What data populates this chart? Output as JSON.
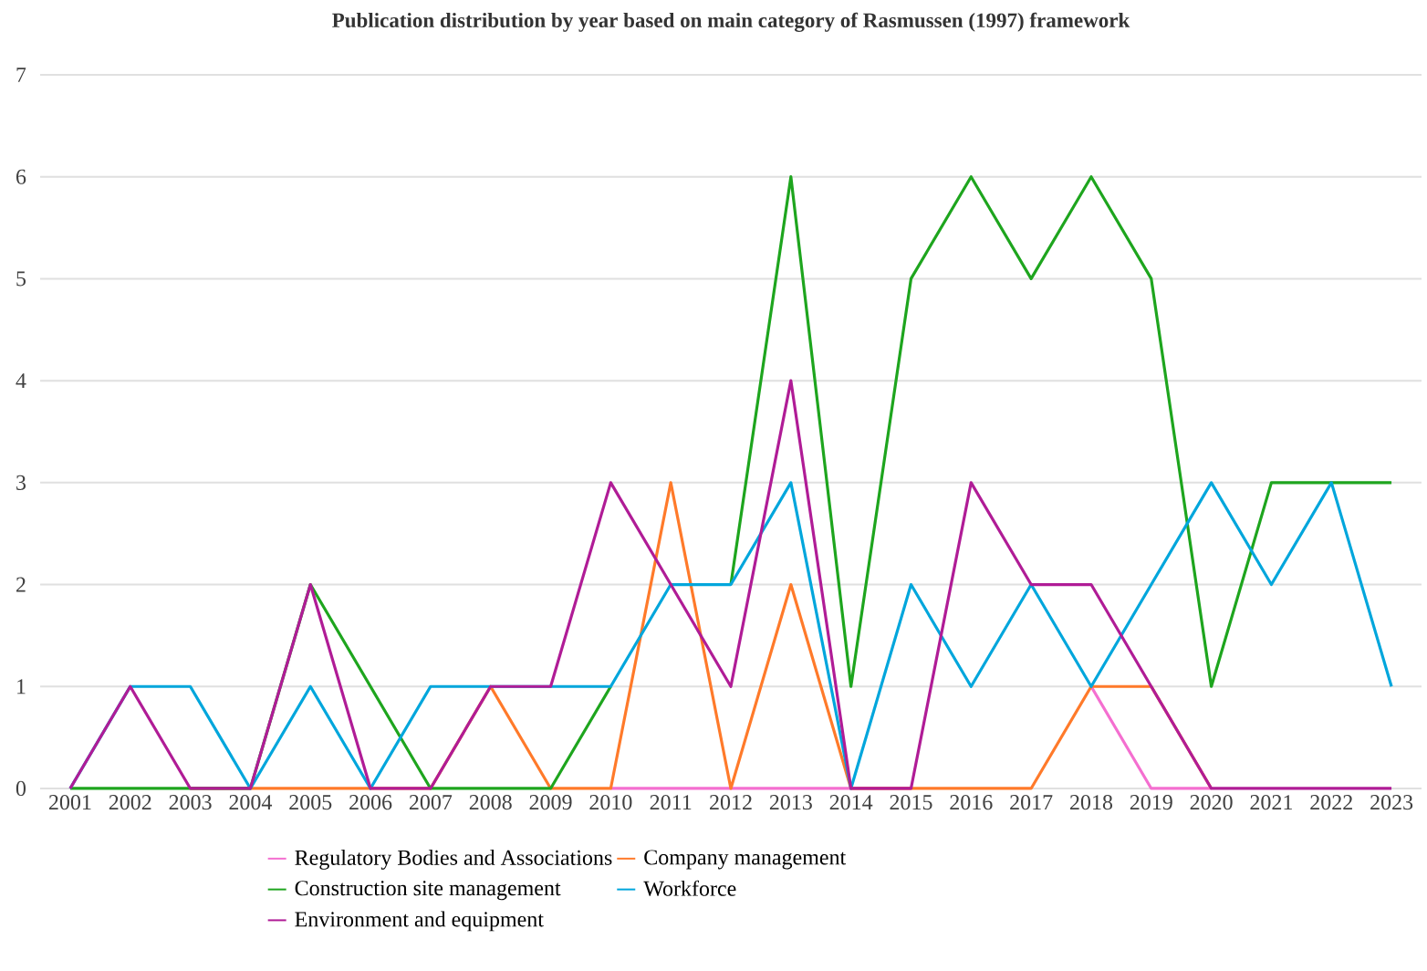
{
  "chart_data": {
    "type": "line",
    "title": "Publication distribution by year based on main category of Rasmussen (1997) framework",
    "categories": [
      "2001",
      "2002",
      "2003",
      "2004",
      "2005",
      "2006",
      "2007",
      "2008",
      "2009",
      "2010",
      "2011",
      "2012",
      "2013",
      "2014",
      "2015",
      "2016",
      "2017",
      "2018",
      "2019",
      "2020",
      "2021",
      "2022",
      "2023"
    ],
    "series": [
      {
        "name": "Regulatory Bodies and Associations",
        "color": "#f46fd0",
        "values": [
          null,
          null,
          null,
          null,
          null,
          null,
          null,
          null,
          null,
          0,
          0,
          0,
          0,
          0,
          0,
          null,
          null,
          1,
          0,
          0,
          null,
          null,
          null
        ]
      },
      {
        "name": "Company management",
        "color": "#ff7a2a",
        "values": [
          null,
          null,
          0,
          0,
          0,
          0,
          0,
          1,
          0,
          0,
          3,
          0,
          2,
          0,
          0,
          0,
          0,
          1,
          1,
          0,
          null,
          null,
          null
        ]
      },
      {
        "name": "Construction site management",
        "color": "#1ea51e",
        "values": [
          0,
          0,
          0,
          0,
          2,
          1,
          0,
          0,
          0,
          1,
          null,
          2,
          6,
          1,
          5,
          6,
          5,
          6,
          5,
          1,
          3,
          3,
          3
        ]
      },
      {
        "name": "Workforce",
        "color": "#00a6dc",
        "values": [
          0,
          1,
          1,
          0,
          1,
          0,
          1,
          1,
          1,
          1,
          2,
          2,
          3,
          0,
          2,
          1,
          2,
          1,
          2,
          3,
          2,
          3,
          1
        ]
      },
      {
        "name": "Environment and equipment",
        "color": "#b01c96",
        "values": [
          0,
          1,
          0,
          0,
          2,
          0,
          0,
          1,
          1,
          3,
          2,
          1,
          4,
          0,
          0,
          3,
          2,
          2,
          1,
          0,
          0,
          0,
          0
        ]
      }
    ],
    "ylim": [
      0,
      7
    ],
    "yticks": [
      0,
      1,
      2,
      3,
      4,
      5,
      6,
      7
    ],
    "grid": "y",
    "legend": "bottom",
    "marker": "none",
    "line_style": "solid"
  }
}
